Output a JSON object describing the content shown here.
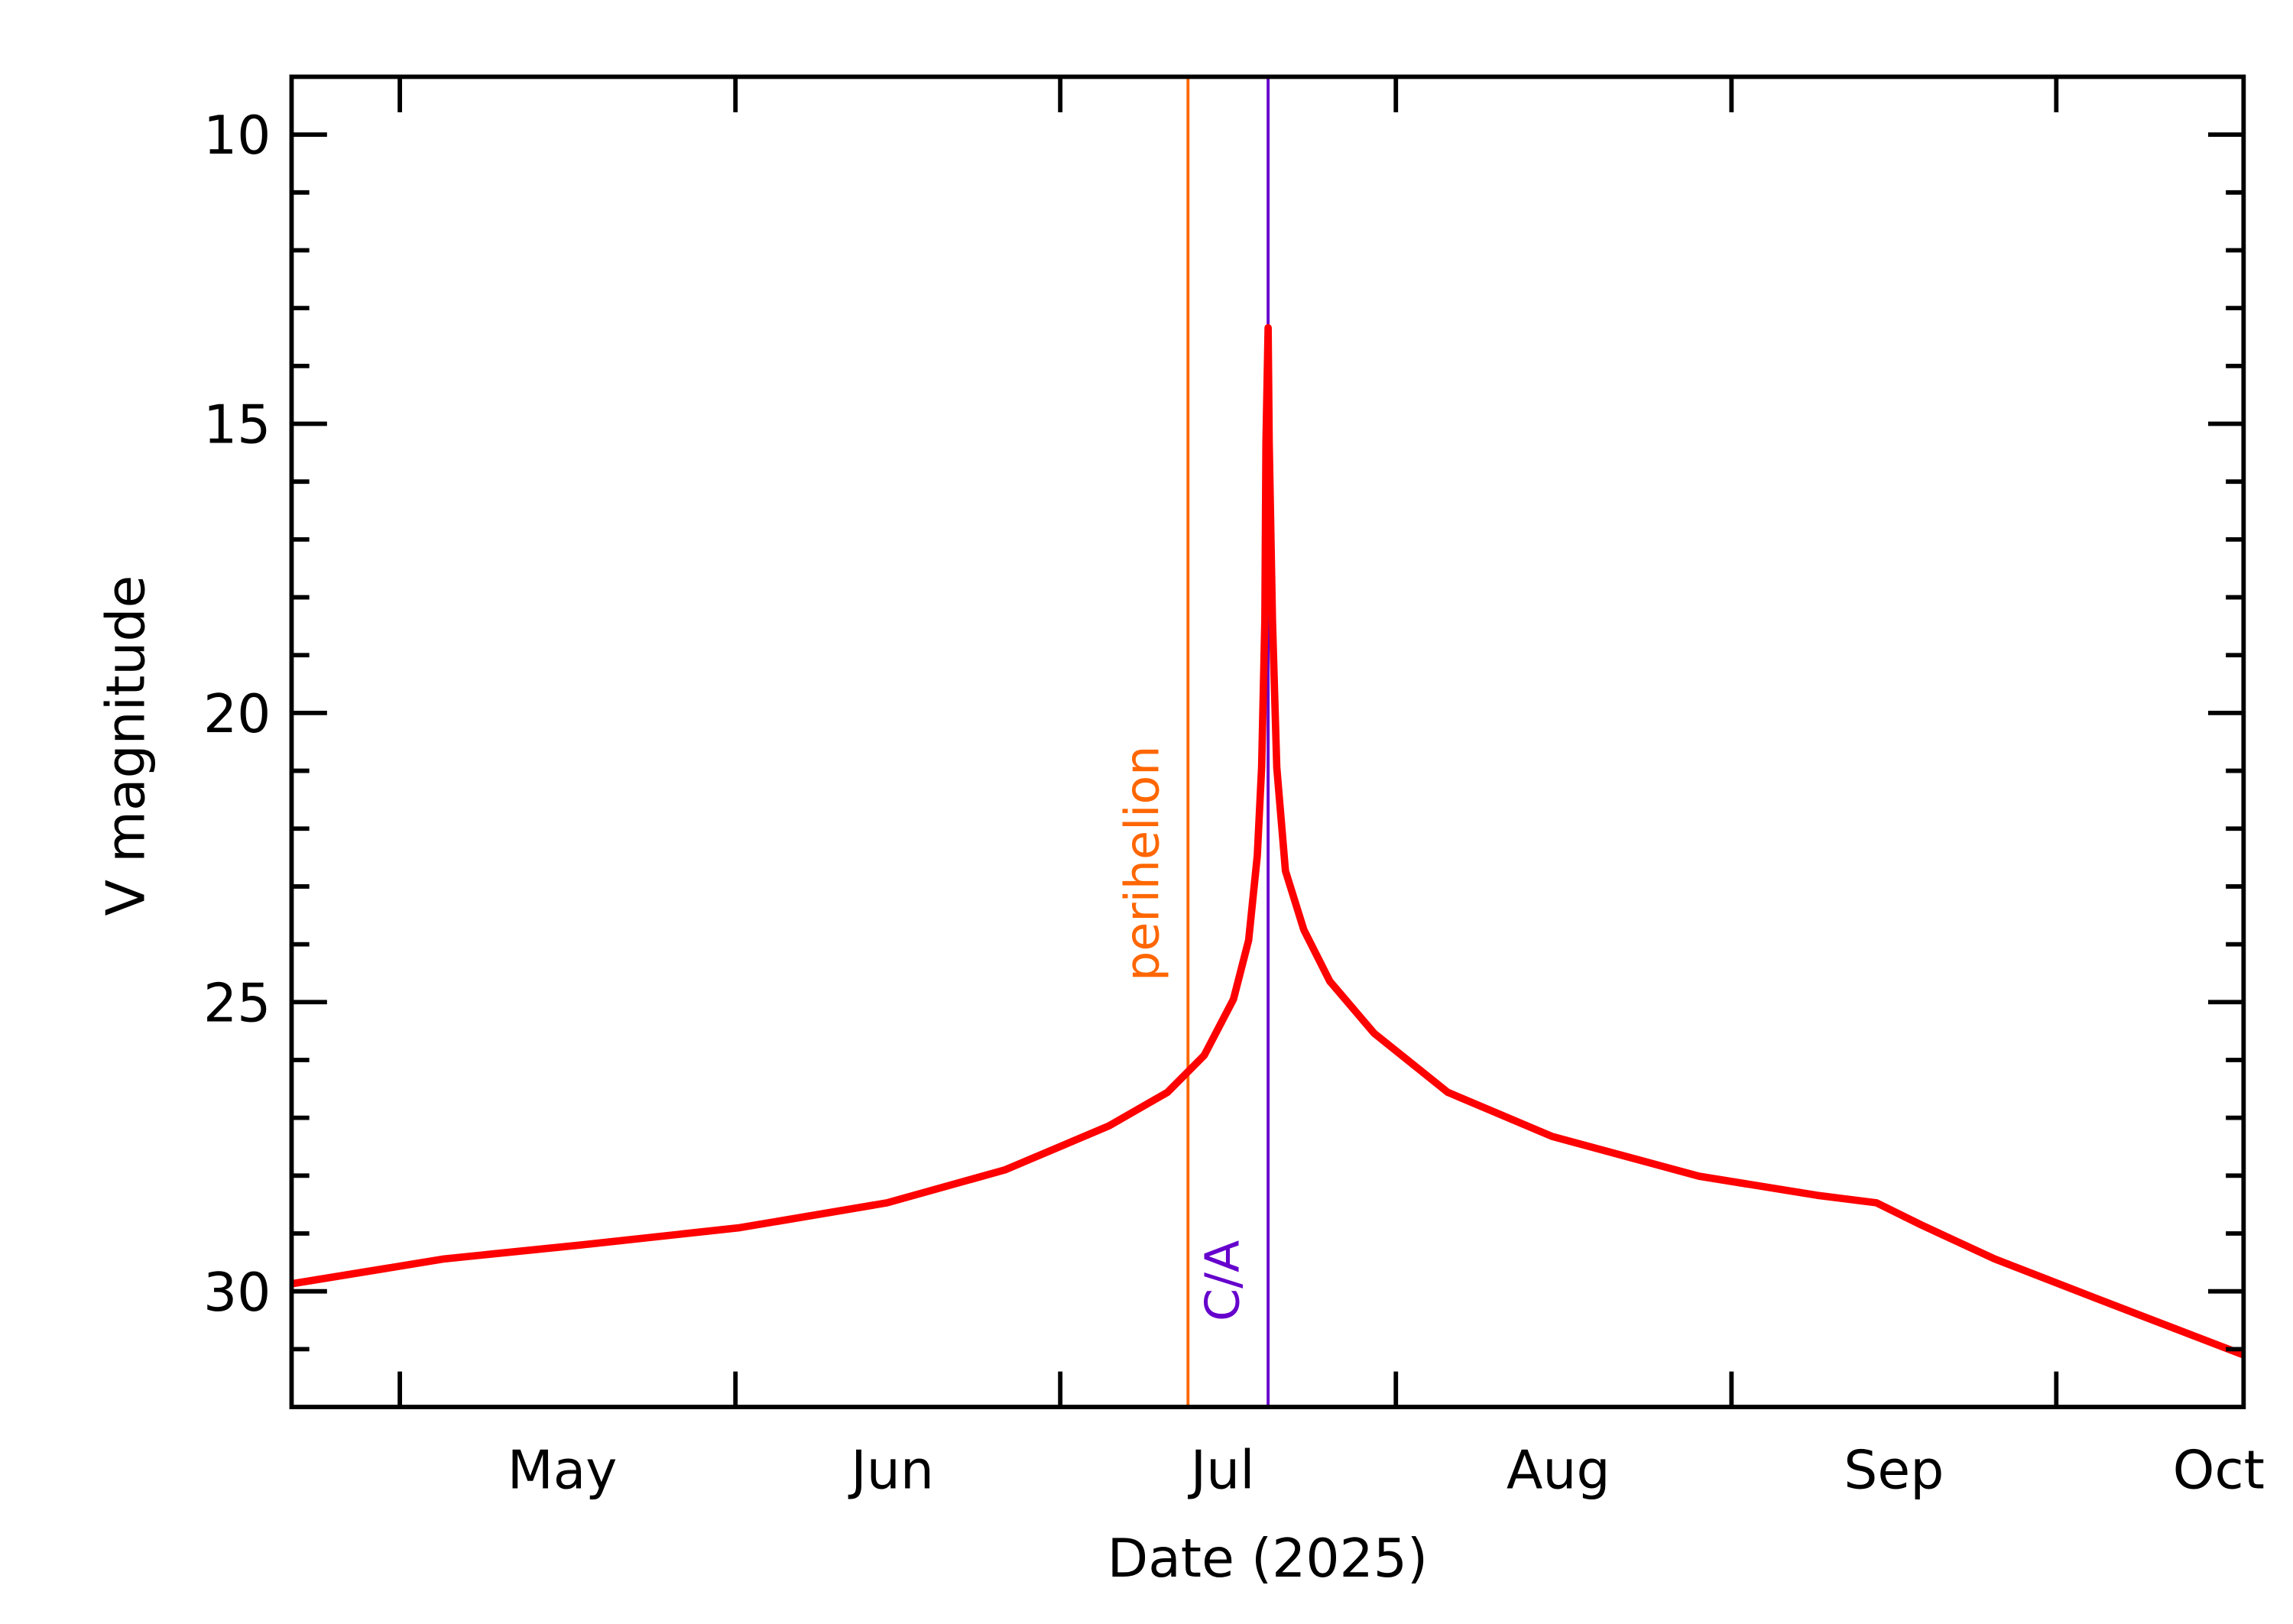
{
  "chart_data": {
    "type": "line",
    "xlabel": "Date (2025)",
    "ylabel": "V magnitude",
    "color": "#ff0000",
    "x": [
      111,
      125.1,
      138.7,
      152.4,
      166,
      176.9,
      186.5,
      191.9,
      195.3,
      198.0,
      199.4,
      200.2,
      200.6,
      200.9,
      201.0,
      201.2,
      201.3,
      201.6,
      202.0,
      202.8,
      204.5,
      206.9,
      211,
      217.8,
      227.4,
      241,
      251.9,
      257.4,
      261.5,
      268.3,
      277.8,
      291.3
    ],
    "values": [
      29.87,
      29.44,
      29.18,
      28.9,
      28.47,
      27.9,
      27.14,
      26.56,
      25.92,
      24.95,
      23.93,
      22.47,
      20.94,
      18.39,
      15.33,
      13.34,
      15.33,
      18.39,
      20.94,
      22.73,
      23.75,
      24.64,
      25.54,
      26.56,
      27.32,
      28.01,
      28.34,
      28.47,
      28.85,
      29.44,
      30.13,
      31.1
    ],
    "xlim": [
      111,
      291.3
    ],
    "ylim": [
      9,
      32
    ],
    "y_inverted": true,
    "yticks": [
      10,
      15,
      20,
      25,
      30
    ],
    "yminor": [
      11,
      12,
      13,
      14,
      16,
      17,
      18,
      19,
      21,
      22,
      23,
      24,
      26,
      27,
      28,
      29,
      31
    ],
    "xtick_marks": [
      121,
      152,
      182,
      213,
      244,
      274
    ],
    "xticks": [
      {
        "value": 136,
        "label": "May"
      },
      {
        "value": 166.5,
        "label": "Jun"
      },
      {
        "value": 197,
        "label": "Jul"
      },
      {
        "value": 228,
        "label": "Aug"
      },
      {
        "value": 259,
        "label": "Sep"
      },
      {
        "value": 289,
        "label": "Oct"
      }
    ],
    "annotations": [
      {
        "text": "perihelion",
        "x": 193.8,
        "color": "#ff6600"
      },
      {
        "text": "C/A",
        "x": 201.2,
        "color": "#6600cc"
      }
    ]
  }
}
